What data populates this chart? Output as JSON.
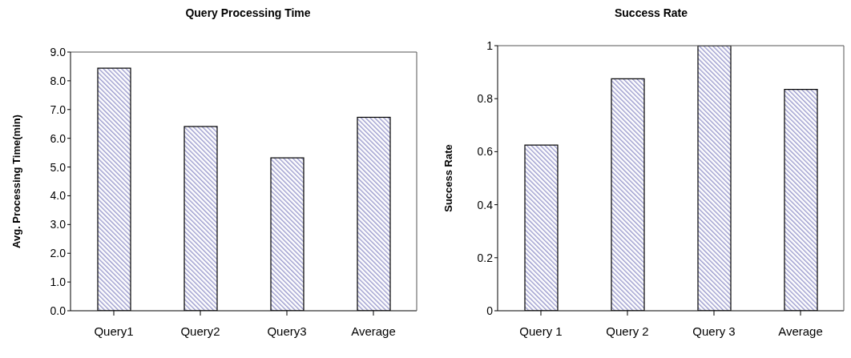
{
  "chart_data": [
    {
      "type": "bar",
      "title": "Query Processing Time",
      "ylabel": "Avg. Processing Time(min)",
      "categories": [
        "Query1",
        "Query2",
        "Query3",
        "Average"
      ],
      "values": [
        8.44,
        6.41,
        5.32,
        6.73
      ],
      "color": "#9999cc",
      "ylim": [
        0,
        9
      ],
      "yticks": [
        {
          "value": 0,
          "label": "0.0"
        },
        {
          "value": 1,
          "label": "1.0"
        },
        {
          "value": 2,
          "label": "2.0"
        },
        {
          "value": 3,
          "label": "3.0"
        },
        {
          "value": 4,
          "label": "4.0"
        },
        {
          "value": 5,
          "label": "5.0"
        },
        {
          "value": 6,
          "label": "6.0"
        },
        {
          "value": 7,
          "label": "7.0"
        },
        {
          "value": 8,
          "label": "8.0"
        },
        {
          "value": 9,
          "label": "9.0"
        }
      ],
      "grid": false,
      "legend": false
    },
    {
      "type": "bar",
      "title": "Success Rate",
      "ylabel": "Success Rate",
      "categories": [
        "Query 1",
        "Query 2",
        "Query 3",
        "Average"
      ],
      "values": [
        0.625,
        0.875,
        1,
        0.835
      ],
      "color": "#9999cc",
      "ylim": [
        0,
        1
      ],
      "yticks": [
        0,
        0.2,
        0.4,
        0.6,
        0.8,
        1
      ],
      "grid": false,
      "legend": false
    }
  ]
}
